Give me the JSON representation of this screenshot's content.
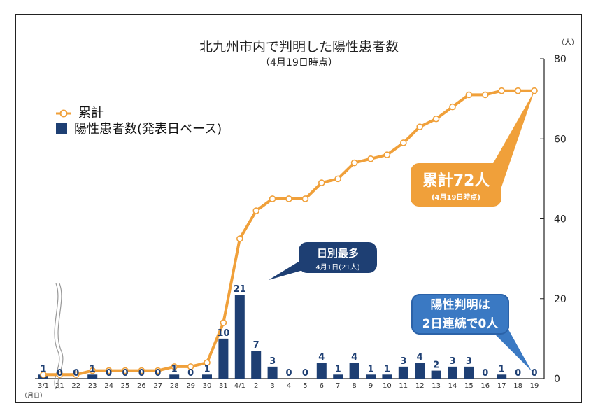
{
  "chart_data": {
    "type": "bar+line",
    "title": "北九州市内で判明した陽性患者数",
    "subtitle": "（4月19日時点）",
    "y_unit": "（人）",
    "x_unit": "（月日）",
    "ylim": [
      0,
      80
    ],
    "yticks": [
      0,
      20,
      40,
      60,
      80
    ],
    "categories": [
      "3/1",
      "21",
      "22",
      "23",
      "24",
      "25",
      "26",
      "27",
      "28",
      "29",
      "30",
      "31",
      "4/1",
      "2",
      "3",
      "4",
      "5",
      "6",
      "7",
      "8",
      "9",
      "10",
      "11",
      "12",
      "13",
      "14",
      "15",
      "16",
      "17",
      "18",
      "19"
    ],
    "series": [
      {
        "name": "陽性患者数(発表日ベース)",
        "type": "bar",
        "values": [
          1,
          0,
          0,
          1,
          0,
          0,
          0,
          0,
          1,
          0,
          1,
          10,
          21,
          7,
          3,
          0,
          0,
          4,
          1,
          4,
          1,
          1,
          3,
          4,
          2,
          3,
          3,
          0,
          1,
          0,
          0
        ]
      },
      {
        "name": "累計",
        "type": "line",
        "values": [
          1,
          1,
          1,
          2,
          2,
          2,
          2,
          2,
          3,
          3,
          4,
          14,
          35,
          42,
          45,
          45,
          45,
          49,
          50,
          54,
          55,
          56,
          59,
          63,
          65,
          68,
          71,
          71,
          72,
          72,
          72
        ]
      }
    ],
    "legend_position": "top-left",
    "colors": {
      "cumulative": "#f0a03a",
      "daily": "#1e3f73",
      "callout_zero": "#3a79c3"
    },
    "annotations": {
      "cumulative_line1": "累計72人",
      "cumulative_line2": "(4月19日時点)",
      "max_line1": "日別最多",
      "max_line2": "4月1日(21人)",
      "zero_line1": "陽性判明は",
      "zero_line2": "2日連続で0人"
    }
  }
}
